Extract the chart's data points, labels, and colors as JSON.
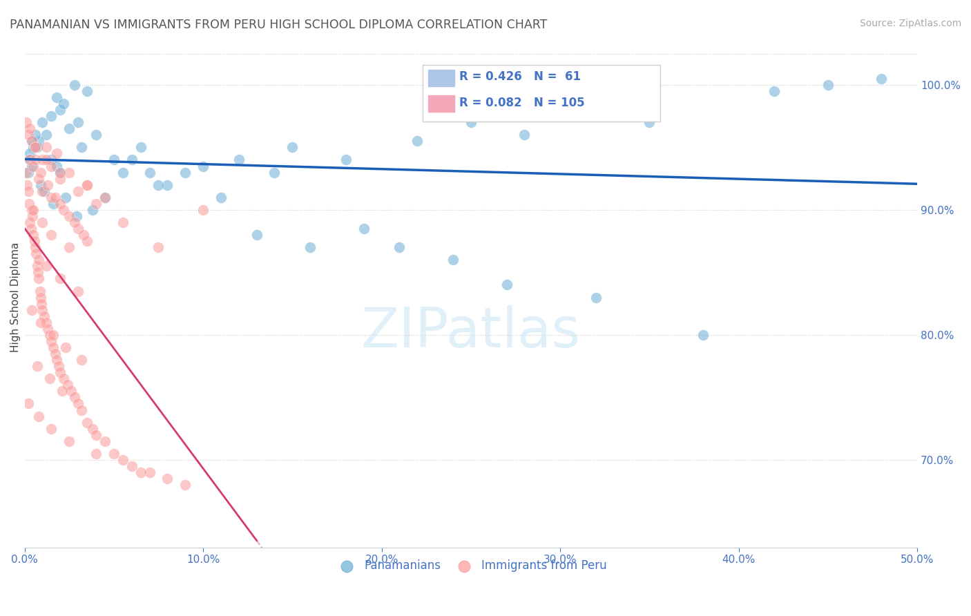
{
  "title": "PANAMANIAN VS IMMIGRANTS FROM PERU HIGH SCHOOL DIPLOMA CORRELATION CHART",
  "source": "Source: ZipAtlas.com",
  "ylabel": "High School Diploma",
  "xlim": [
    0.0,
    50.0
  ],
  "ylim": [
    63.0,
    103.0
  ],
  "blue_color": "#6baed6",
  "pink_color": "#fb9a99",
  "trend_blue": "#1a5eb8",
  "trend_pink": "#d63a6e",
  "axis_color": "#4472c4",
  "blue_scatter_x": [
    2.8,
    3.5,
    2.0,
    1.5,
    1.8,
    2.2,
    3.0,
    2.5,
    1.0,
    1.2,
    0.8,
    0.5,
    0.3,
    0.4,
    0.6,
    0.7,
    1.5,
    1.8,
    2.0,
    3.2,
    4.0,
    5.0,
    6.5,
    7.0,
    8.0,
    10.0,
    12.0,
    14.0,
    15.0,
    18.0,
    22.0,
    25.0,
    28.0,
    30.0,
    35.0,
    42.0,
    45.0,
    0.2,
    0.3,
    0.4,
    0.9,
    1.1,
    1.6,
    2.3,
    2.9,
    3.8,
    4.5,
    5.5,
    6.0,
    7.5,
    9.0,
    11.0,
    13.0,
    16.0,
    19.0,
    21.0,
    24.0,
    27.0,
    32.0,
    38.0,
    48.0
  ],
  "blue_scatter_y": [
    100.0,
    99.5,
    98.0,
    97.5,
    99.0,
    98.5,
    97.0,
    96.5,
    97.0,
    96.0,
    95.5,
    95.0,
    94.5,
    95.5,
    96.0,
    95.0,
    94.0,
    93.5,
    93.0,
    95.0,
    96.0,
    94.0,
    95.0,
    93.0,
    92.0,
    93.5,
    94.0,
    93.0,
    95.0,
    94.0,
    95.5,
    97.0,
    96.0,
    98.0,
    97.0,
    99.5,
    100.0,
    93.0,
    94.0,
    93.5,
    92.0,
    91.5,
    90.5,
    91.0,
    89.5,
    90.0,
    91.0,
    93.0,
    94.0,
    92.0,
    93.0,
    91.0,
    88.0,
    87.0,
    88.5,
    87.0,
    86.0,
    84.0,
    83.0,
    80.0,
    100.5
  ],
  "pink_scatter_x": [
    0.1,
    0.15,
    0.2,
    0.25,
    0.3,
    0.35,
    0.4,
    0.45,
    0.5,
    0.55,
    0.6,
    0.65,
    0.7,
    0.75,
    0.8,
    0.85,
    0.9,
    0.95,
    1.0,
    1.1,
    1.2,
    1.3,
    1.4,
    1.5,
    1.6,
    1.7,
    1.8,
    1.9,
    2.0,
    2.2,
    2.4,
    2.6,
    2.8,
    3.0,
    3.2,
    3.5,
    3.8,
    4.0,
    4.5,
    5.0,
    5.5,
    6.0,
    7.0,
    8.0,
    9.0,
    10.0,
    0.3,
    0.5,
    0.8,
    1.0,
    1.5,
    2.0,
    2.5,
    3.0,
    3.5,
    1.2,
    1.8,
    2.5,
    3.5,
    4.5,
    0.2,
    0.4,
    0.6,
    0.9,
    1.3,
    1.7,
    2.2,
    2.8,
    3.3,
    0.1,
    0.3,
    0.6,
    1.0,
    1.5,
    2.0,
    3.0,
    4.0,
    5.5,
    7.5,
    0.5,
    1.0,
    1.5,
    2.5,
    0.8,
    1.2,
    2.0,
    3.0,
    0.4,
    0.9,
    1.6,
    2.3,
    3.2,
    0.7,
    1.4,
    2.1,
    0.2,
    0.8,
    1.5,
    2.5,
    4.0,
    0.6,
    1.2,
    2.0,
    3.5,
    6.5
  ],
  "pink_scatter_y": [
    93.0,
    92.0,
    91.5,
    90.5,
    89.0,
    88.5,
    90.0,
    89.5,
    88.0,
    87.5,
    87.0,
    86.5,
    85.5,
    85.0,
    84.5,
    83.5,
    83.0,
    82.5,
    82.0,
    81.5,
    81.0,
    80.5,
    80.0,
    79.5,
    79.0,
    78.5,
    78.0,
    77.5,
    77.0,
    76.5,
    76.0,
    75.5,
    75.0,
    74.5,
    74.0,
    73.0,
    72.5,
    72.0,
    71.5,
    70.5,
    70.0,
    69.5,
    69.0,
    68.5,
    68.0,
    90.0,
    94.0,
    93.5,
    92.5,
    91.5,
    91.0,
    90.5,
    89.5,
    88.5,
    87.5,
    95.0,
    94.5,
    93.0,
    92.0,
    91.0,
    96.0,
    95.5,
    94.0,
    93.0,
    92.0,
    91.0,
    90.0,
    89.0,
    88.0,
    97.0,
    96.5,
    95.0,
    94.0,
    93.5,
    92.5,
    91.5,
    90.5,
    89.0,
    87.0,
    90.0,
    89.0,
    88.0,
    87.0,
    86.0,
    85.5,
    84.5,
    83.5,
    82.0,
    81.0,
    80.0,
    79.0,
    78.0,
    77.5,
    76.5,
    75.5,
    74.5,
    73.5,
    72.5,
    71.5,
    70.5,
    95.0,
    94.0,
    93.0,
    92.0,
    69.0
  ]
}
